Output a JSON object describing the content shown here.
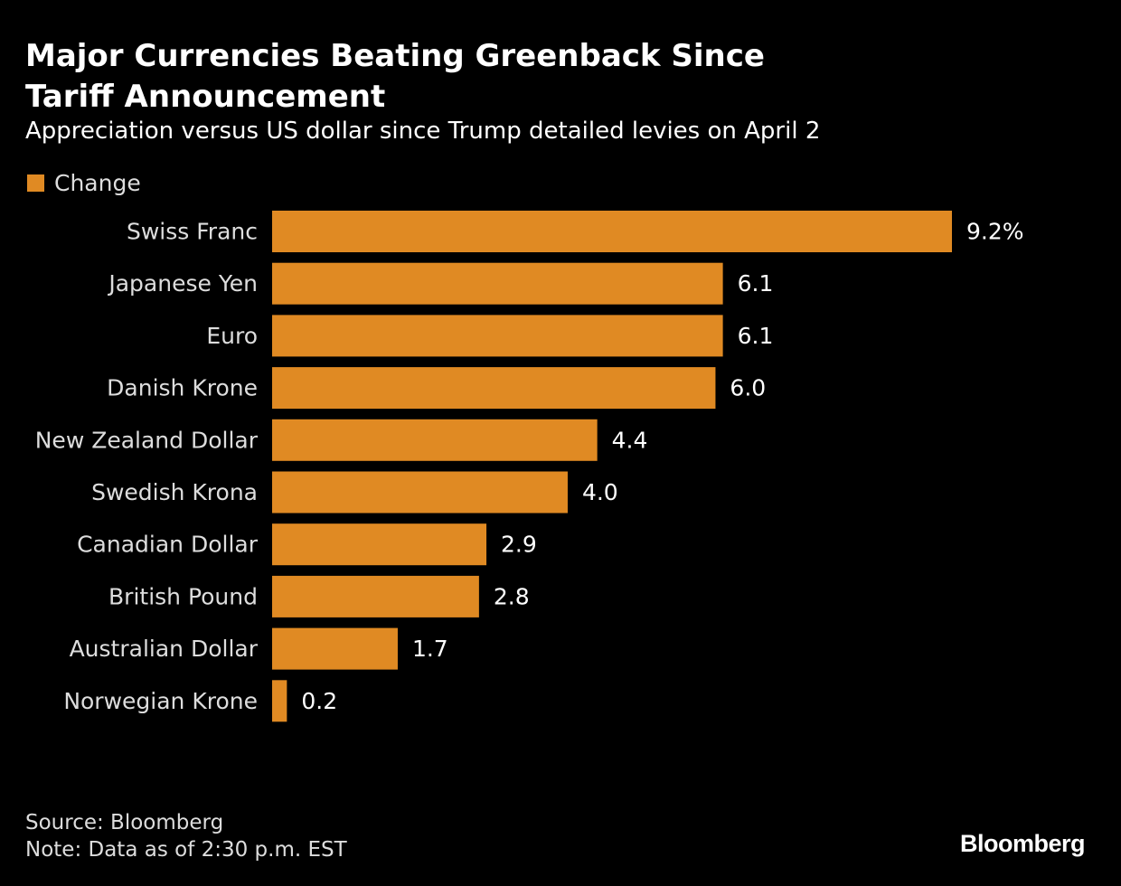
{
  "header": {
    "title": "Major Currencies Beating Greenback Since Tariff Announcement",
    "subtitle": "Appreciation versus US dollar since Trump detailed levies on April 2"
  },
  "legend": {
    "label": "Change",
    "color": "#e08a23"
  },
  "footer": {
    "source": "Source: Bloomberg",
    "note": "Note: Data as of 2:30 p.m. EST"
  },
  "brand": {
    "logo_text": "Bloomberg"
  },
  "colors": {
    "background": "#000000",
    "bar": "#e08a23",
    "text": "#ffffff"
  },
  "chart_data": {
    "type": "bar",
    "orientation": "horizontal",
    "title": "Major Currencies Beating Greenback Since Tariff Announcement",
    "subtitle": "Appreciation versus US dollar since Trump detailed levies on April 2",
    "categories": [
      "Swiss Franc",
      "Japanese Yen",
      "Euro",
      "Danish Krone",
      "New Zealand Dollar",
      "Swedish Krona",
      "Canadian Dollar",
      "British Pound",
      "Australian Dollar",
      "Norwegian Krone"
    ],
    "series": [
      {
        "name": "Change",
        "values": [
          9.2,
          6.1,
          6.1,
          6.0,
          4.4,
          4.0,
          2.9,
          2.8,
          1.7,
          0.2
        ],
        "labels": [
          "9.2%",
          "6.1",
          "6.1",
          "6.0",
          "4.4",
          "4.0",
          "2.9",
          "2.8",
          "1.7",
          "0.2"
        ]
      }
    ],
    "xlim": [
      0,
      9.2
    ],
    "xlabel": "",
    "ylabel": "",
    "grid": false,
    "legend_position": "top-left"
  }
}
